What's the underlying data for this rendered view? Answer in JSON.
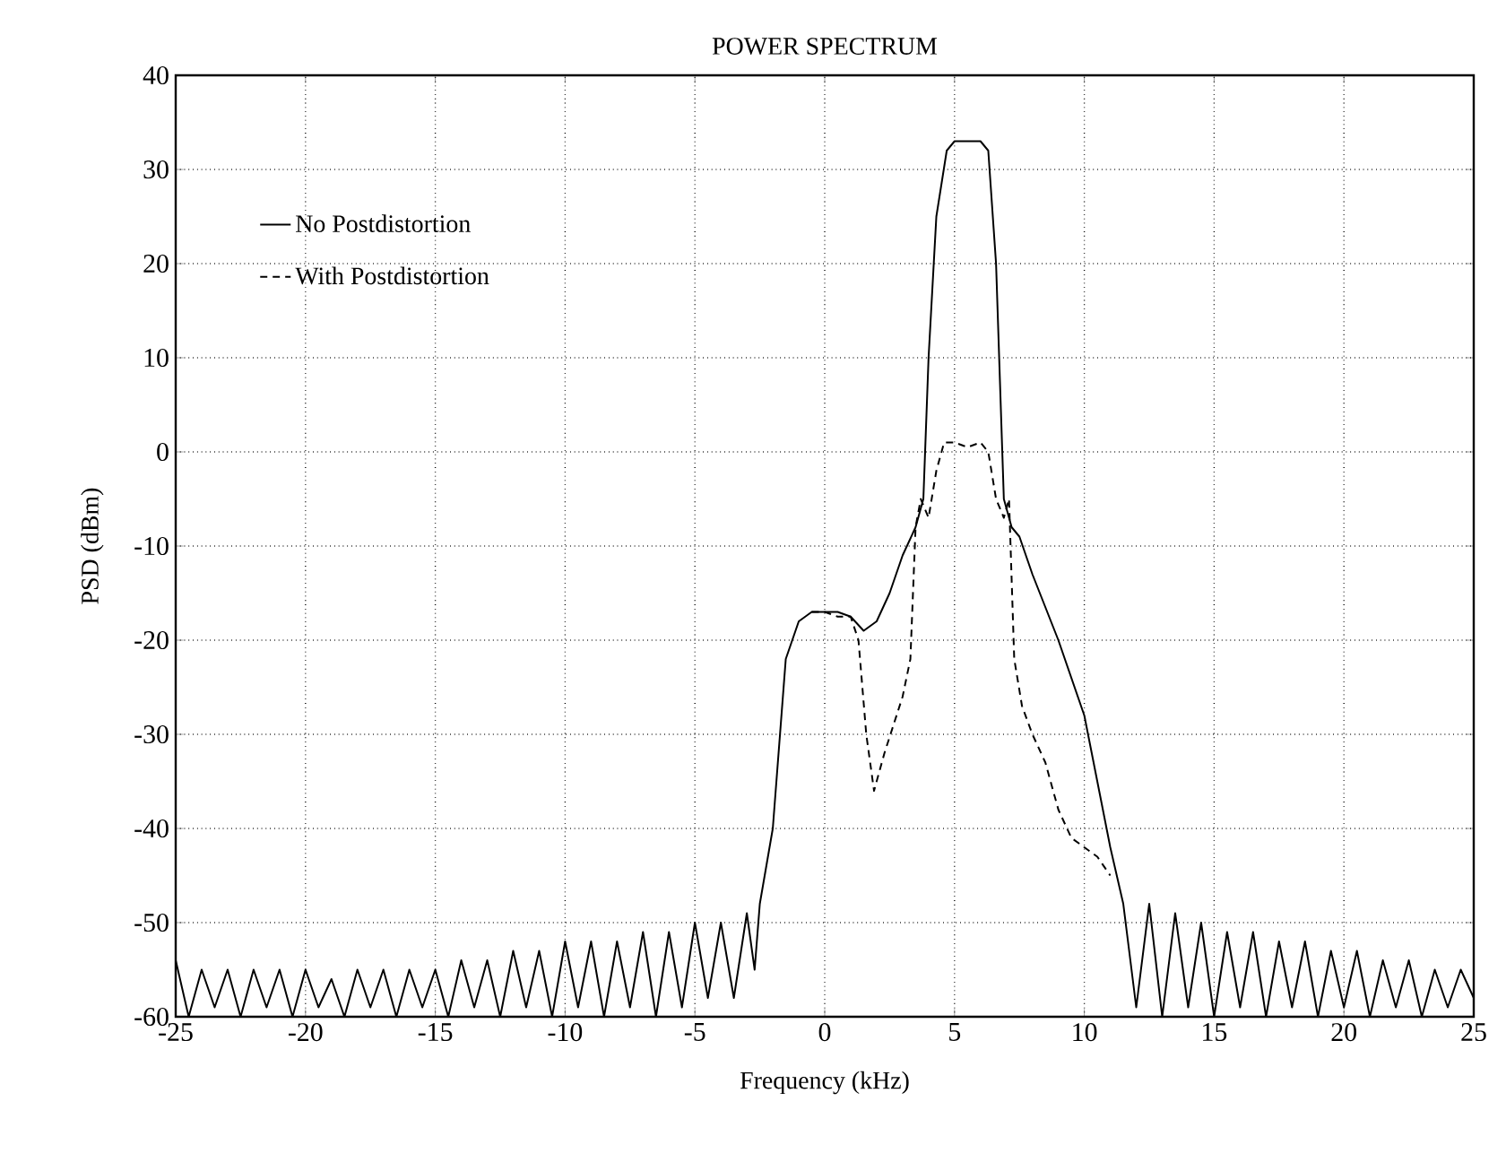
{
  "chart_data": {
    "type": "line",
    "title": "POWER SPECTRUM",
    "xlabel": "Frequency (kHz)",
    "ylabel": "PSD (dBm)",
    "xlim": [
      -25,
      25
    ],
    "ylim": [
      -60,
      40
    ],
    "xticks": [
      -25,
      -20,
      -15,
      -10,
      -5,
      0,
      5,
      10,
      15,
      20,
      25
    ],
    "yticks": [
      -60,
      -50,
      -40,
      -30,
      -20,
      -10,
      0,
      10,
      20,
      30,
      40
    ],
    "grid": true,
    "legend": "top left",
    "marker": "none",
    "series": [
      {
        "name": "No Postdistortion",
        "color": "#000000",
        "line_style": "solid",
        "x": [
          -25,
          -24.5,
          -24,
          -23.5,
          -23,
          -22.5,
          -22,
          -21.5,
          -21,
          -20.5,
          -20,
          -19.5,
          -19,
          -18.5,
          -18,
          -17.5,
          -17,
          -16.5,
          -16,
          -15.5,
          -15,
          -14.5,
          -14,
          -13.5,
          -13,
          -12.5,
          -12,
          -11.5,
          -11,
          -10.5,
          -10,
          -9.5,
          -9,
          -8.5,
          -8,
          -7.5,
          -7,
          -6.5,
          -6,
          -5.5,
          -5,
          -4.5,
          -4,
          -3.5,
          -3,
          -2.7,
          -2.5,
          -2,
          -1.5,
          -1,
          -0.5,
          0,
          0.5,
          1,
          1.5,
          2,
          2.5,
          3,
          3.5,
          3.8,
          4,
          4.3,
          4.7,
          5,
          6,
          6.3,
          6.6,
          6.9,
          7.2,
          7.5,
          8,
          9,
          10,
          10.5,
          11,
          11.5,
          12,
          12.5,
          13,
          13.5,
          14,
          14.5,
          15,
          15.5,
          16,
          16.5,
          17,
          17.5,
          18,
          18.5,
          19,
          19.5,
          20,
          20.5,
          21,
          21.5,
          22,
          22.5,
          23,
          23.5,
          24,
          24.5,
          25
        ],
        "values": [
          -54,
          -60,
          -55,
          -59,
          -55,
          -60,
          -55,
          -59,
          -55,
          -60,
          -55,
          -59,
          -56,
          -60,
          -55,
          -59,
          -55,
          -60,
          -55,
          -59,
          -55,
          -60,
          -54,
          -59,
          -54,
          -60,
          -53,
          -59,
          -53,
          -60,
          -52,
          -59,
          -52,
          -60,
          -52,
          -59,
          -51,
          -60,
          -51,
          -59,
          -50,
          -58,
          -50,
          -58,
          -49,
          -55,
          -48,
          -40,
          -22,
          -18,
          -17,
          -17,
          -17,
          -17.5,
          -19,
          -18,
          -15,
          -11,
          -8,
          -5,
          10,
          25,
          32,
          33,
          33,
          32,
          20,
          -5,
          -8,
          -9,
          -13,
          -20,
          -28,
          -35,
          -42,
          -48,
          -59,
          -48,
          -60,
          -49,
          -59,
          -50,
          -60,
          -51,
          -59,
          -51,
          -60,
          -52,
          -59,
          -52,
          -60,
          -53,
          -59,
          -53,
          -60,
          -54,
          -59,
          -54,
          -60,
          -55,
          -59,
          -55,
          -58
        ]
      },
      {
        "name": "With Postdistortion",
        "color": "#000000",
        "line_style": "dashed",
        "x": [
          -0.5,
          0,
          0.5,
          1,
          1.3,
          1.6,
          1.9,
          2.3,
          3,
          3.3,
          3.5,
          3.7,
          4,
          4.3,
          4.6,
          5,
          5.5,
          6,
          6.3,
          6.6,
          6.9,
          7.1,
          7.3,
          7.6,
          8,
          8.5,
          9,
          9.5,
          10,
          10.5,
          11
        ],
        "values": [
          -17,
          -17,
          -17.5,
          -17.5,
          -20,
          -30,
          -36,
          -32,
          -26,
          -22,
          -8,
          -5,
          -7,
          -2,
          1,
          1,
          0.5,
          1,
          0,
          -5,
          -7,
          -5,
          -22,
          -27,
          -30,
          -33,
          -38,
          -41,
          -42,
          -43,
          -45
        ]
      }
    ]
  }
}
